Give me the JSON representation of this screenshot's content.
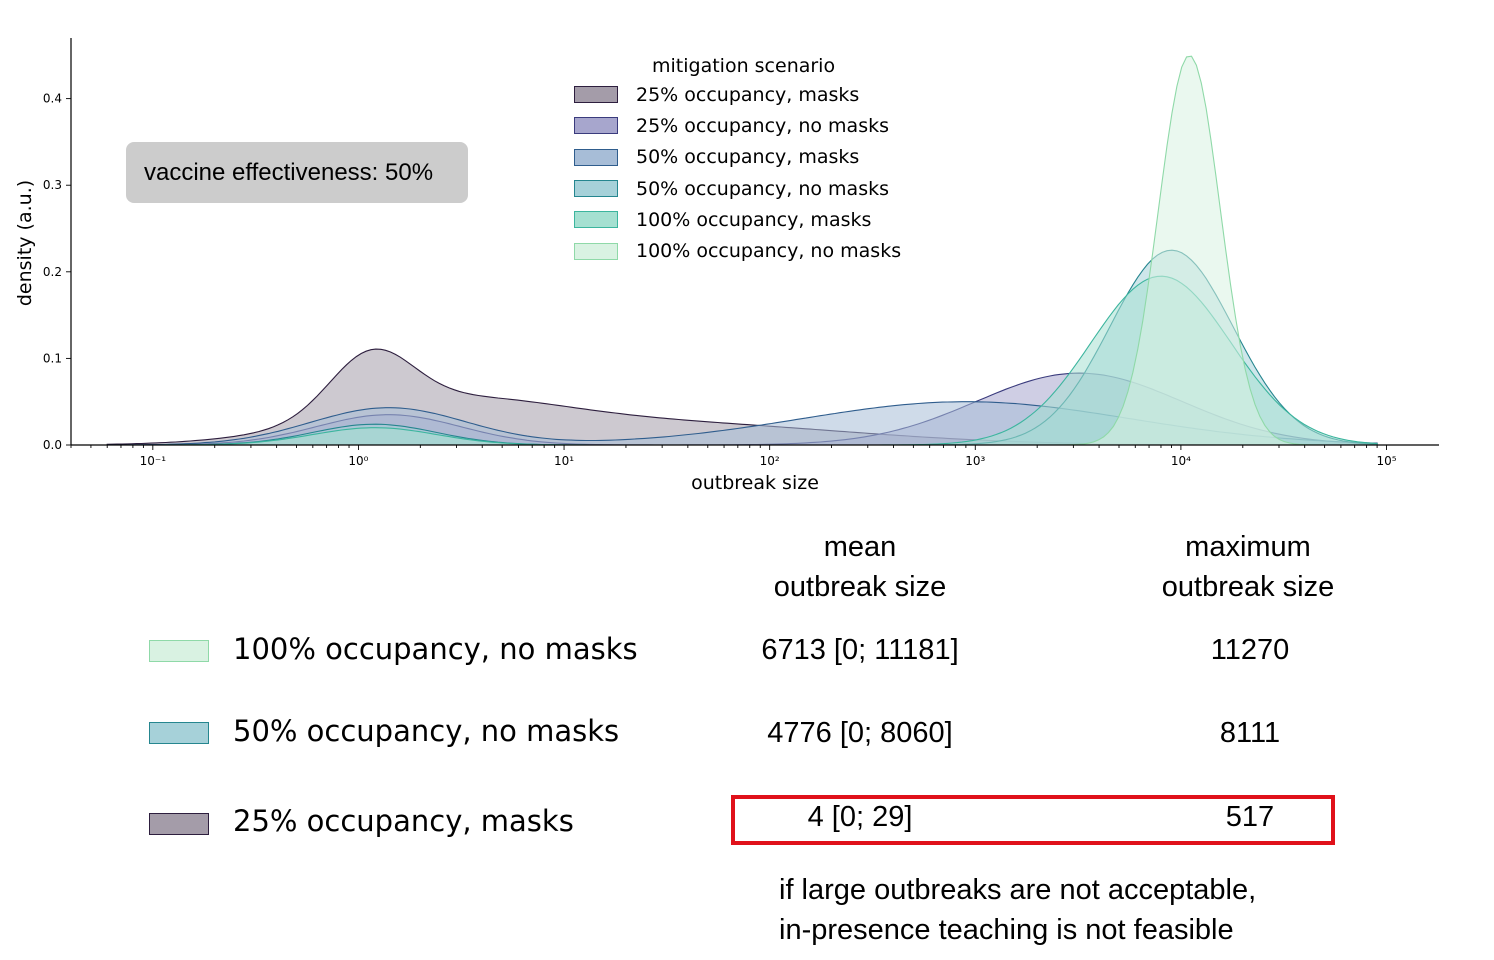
{
  "chart_data": {
    "type": "area",
    "xlabel": "outbreak size",
    "ylabel": "density (a.u.)",
    "xscale": "log",
    "xlim": [
      0.04,
      180000
    ],
    "ylim": [
      0,
      0.47
    ],
    "yticks": [
      "0.0",
      "0.1",
      "0.2",
      "0.3",
      "0.4"
    ],
    "xticks": [
      "10⁻¹",
      "10⁰",
      "10¹",
      "10²",
      "10³",
      "10⁴",
      "10⁵"
    ],
    "legend_title": "mitigation scenario",
    "legend_position": "top-center",
    "annotation": "vaccine effectiveness: 50%",
    "series": [
      {
        "name": "25% occupancy, masks",
        "fill": "#a49ca9",
        "stroke": "#2d1e3e",
        "components": [
          {
            "peak_x": 1.15,
            "height": 0.068,
            "width": 0.2
          },
          {
            "peak_x": 2.5,
            "height": 0.042,
            "width": 0.55
          },
          {
            "peak_x": 30,
            "height": 0.025,
            "width": 0.9
          }
        ]
      },
      {
        "name": "25% occupancy, no masks",
        "fill": "#a7a6cd",
        "stroke": "#3a3b7d",
        "components": [
          {
            "peak_x": 1.4,
            "height": 0.035,
            "width": 0.35
          },
          {
            "peak_x": 3200,
            "height": 0.083,
            "width": 0.5
          }
        ]
      },
      {
        "name": "50% occupancy, masks",
        "fill": "#a7bdd7",
        "stroke": "#2f5d8d",
        "components": [
          {
            "peak_x": 1.4,
            "height": 0.043,
            "width": 0.38
          },
          {
            "peak_x": 900,
            "height": 0.05,
            "width": 0.8
          }
        ]
      },
      {
        "name": "50% occupancy, no masks",
        "fill": "#a6d1d9",
        "stroke": "#25868f",
        "components": [
          {
            "peak_x": 1.2,
            "height": 0.024,
            "width": 0.3
          },
          {
            "peak_x": 9000,
            "height": 0.225,
            "width": 0.3
          }
        ]
      },
      {
        "name": "100% occupancy, masks",
        "fill": "#a5e0d1",
        "stroke": "#3cb59e",
        "components": [
          {
            "peak_x": 1.2,
            "height": 0.02,
            "width": 0.3
          },
          {
            "peak_x": 8000,
            "height": 0.195,
            "width": 0.34
          }
        ]
      },
      {
        "name": "100% occupancy, no masks",
        "fill": "#d9f2e2",
        "stroke": "#8fd9a8",
        "components": [
          {
            "peak_x": 11000,
            "height": 0.45,
            "width": 0.15
          }
        ]
      }
    ]
  },
  "table": {
    "headers": {
      "mean_line1": "mean",
      "mean_line2": "outbreak size",
      "max_line1": "maximum",
      "max_line2": "outbreak size"
    },
    "rows": [
      {
        "label": "100% occupancy, no masks",
        "swatch_fill": "#d9f2e2",
        "swatch_stroke": "#8fd9a8",
        "mean": "6713 [0; 11181]",
        "max": "11270"
      },
      {
        "label": "50% occupancy, no masks",
        "swatch_fill": "#a6d1d9",
        "swatch_stroke": "#25868f",
        "mean": "4776 [0; 8060]",
        "max": "8111"
      },
      {
        "label": "25% occupancy, masks",
        "swatch_fill": "#a49ca9",
        "swatch_stroke": "#2d1e3e",
        "mean": "4 [0; 29]",
        "max": "517"
      }
    ],
    "highlight_color": "#e0111a"
  },
  "note": {
    "line1": "if large outbreaks are not acceptable,",
    "line2": "in-presence teaching is not feasible"
  }
}
